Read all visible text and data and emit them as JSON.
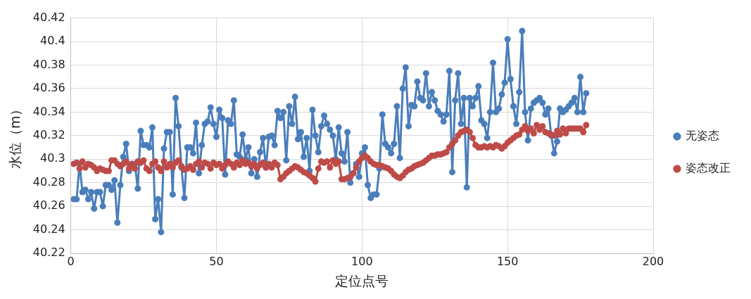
{
  "chart_data": {
    "type": "line",
    "xlabel": "定位点号",
    "ylabel": "水位（m）",
    "xlim": [
      0,
      200
    ],
    "xticks": [
      0,
      50,
      100,
      150,
      200
    ],
    "ylim": [
      40.22,
      40.42
    ],
    "yticks": [
      40.22,
      40.24,
      40.26,
      40.28,
      40.3,
      40.32,
      40.34,
      40.36,
      40.38,
      40.4,
      40.42
    ],
    "grid": true,
    "legend": "right",
    "marker": "circle",
    "line_style": "solid",
    "x": [
      1,
      2,
      3,
      4,
      5,
      6,
      7,
      8,
      9,
      10,
      11,
      12,
      13,
      14,
      15,
      16,
      17,
      18,
      19,
      20,
      21,
      22,
      23,
      24,
      25,
      26,
      27,
      28,
      29,
      30,
      31,
      32,
      33,
      34,
      35,
      36,
      37,
      38,
      39,
      40,
      41,
      42,
      43,
      44,
      45,
      46,
      47,
      48,
      49,
      50,
      51,
      52,
      53,
      54,
      55,
      56,
      57,
      58,
      59,
      60,
      61,
      62,
      63,
      64,
      65,
      66,
      67,
      68,
      69,
      70,
      71,
      72,
      73,
      74,
      75,
      76,
      77,
      78,
      79,
      80,
      81,
      82,
      83,
      84,
      85,
      86,
      87,
      88,
      89,
      90,
      91,
      92,
      93,
      94,
      95,
      96,
      97,
      98,
      99,
      100,
      101,
      102,
      103,
      104,
      105,
      106,
      107,
      108,
      109,
      110,
      111,
      112,
      113,
      114,
      115,
      116,
      117,
      118,
      119,
      120,
      121,
      122,
      123,
      124,
      125,
      126,
      127,
      128,
      129,
      130,
      131,
      132,
      133,
      134,
      135,
      136,
      137,
      138,
      139,
      140,
      141,
      142,
      143,
      144,
      145,
      146,
      147,
      148,
      149,
      150,
      151,
      152,
      153,
      154,
      155,
      156,
      157,
      158,
      159,
      160,
      161,
      162,
      163,
      164,
      165,
      166,
      167,
      168,
      169,
      170,
      171,
      172,
      173,
      174,
      175,
      176,
      177
    ],
    "series": [
      {
        "name": "无姿态",
        "color": "#4a7ebb",
        "values": [
          40.266,
          40.266,
          40.296,
          40.272,
          40.274,
          40.266,
          40.272,
          40.258,
          40.272,
          40.272,
          40.26,
          40.278,
          40.278,
          40.274,
          40.282,
          40.246,
          40.278,
          40.302,
          40.313,
          40.29,
          40.296,
          40.296,
          40.275,
          40.324,
          40.312,
          40.312,
          40.31,
          40.327,
          40.249,
          40.266,
          40.238,
          40.309,
          40.323,
          40.323,
          40.27,
          40.352,
          40.328,
          40.293,
          40.267,
          40.31,
          40.31,
          40.305,
          40.331,
          40.288,
          40.312,
          40.33,
          40.332,
          40.344,
          40.33,
          40.319,
          40.342,
          40.335,
          40.287,
          40.333,
          40.33,
          40.35,
          40.304,
          40.302,
          40.321,
          40.3,
          40.31,
          40.288,
          40.3,
          40.285,
          40.306,
          40.318,
          40.293,
          40.319,
          40.32,
          40.312,
          40.341,
          40.335,
          40.34,
          40.299,
          40.345,
          40.33,
          40.353,
          40.317,
          40.323,
          40.302,
          40.318,
          40.29,
          40.342,
          40.32,
          40.306,
          40.328,
          40.337,
          40.33,
          40.325,
          40.32,
          40.3,
          40.327,
          40.305,
          40.298,
          40.323,
          40.28,
          40.288,
          40.296,
          40.285,
          40.305,
          40.31,
          40.278,
          40.267,
          40.27,
          40.27,
          40.292,
          40.338,
          40.313,
          40.31,
          40.305,
          40.313,
          40.345,
          40.301,
          40.36,
          40.378,
          40.328,
          40.346,
          40.345,
          40.366,
          40.352,
          40.35,
          40.373,
          40.345,
          40.357,
          40.35,
          40.341,
          40.338,
          40.332,
          40.338,
          40.375,
          40.289,
          40.35,
          40.373,
          40.33,
          40.352,
          40.276,
          40.352,
          40.345,
          40.352,
          40.362,
          40.333,
          40.33,
          40.318,
          40.34,
          40.382,
          40.34,
          40.343,
          40.355,
          40.365,
          40.402,
          40.368,
          40.345,
          40.33,
          40.357,
          40.409,
          40.34,
          40.316,
          40.343,
          40.348,
          40.35,
          40.352,
          40.348,
          40.338,
          40.343,
          40.32,
          40.305,
          40.315,
          40.343,
          40.34,
          40.342,
          40.345,
          40.348,
          40.352,
          40.34,
          40.37,
          40.34,
          40.356
        ]
      },
      {
        "name": "姿态改正",
        "color": "#be4b48",
        "values": [
          40.296,
          40.297,
          40.292,
          40.298,
          40.293,
          40.296,
          40.295,
          40.293,
          40.29,
          40.292,
          40.291,
          40.29,
          40.29,
          40.299,
          40.299,
          40.296,
          40.294,
          40.296,
          40.298,
          40.292,
          40.296,
          40.292,
          40.298,
          40.297,
          40.299,
          40.292,
          40.29,
          40.296,
          40.298,
          40.293,
          40.29,
          40.298,
          40.293,
          40.296,
          40.293,
          40.297,
          40.299,
          40.294,
          40.291,
          40.292,
          40.294,
          40.291,
          40.296,
          40.298,
          40.293,
          40.297,
          40.296,
          40.292,
          40.297,
          40.295,
          40.296,
          40.292,
          40.295,
          40.298,
          40.296,
          40.293,
          40.297,
          40.295,
          40.299,
          40.296,
          40.297,
          40.294,
          40.296,
          40.292,
          40.295,
          40.297,
          40.293,
          40.296,
          40.293,
          40.297,
          40.295,
          40.283,
          40.285,
          40.288,
          40.29,
          40.292,
          40.294,
          40.293,
          40.291,
          40.289,
          40.288,
          40.286,
          40.284,
          40.281,
          40.292,
          40.298,
          40.297,
          40.298,
          40.293,
          40.299,
          40.296,
          40.298,
          40.283,
          40.283,
          40.284,
          40.285,
          40.288,
          40.293,
          40.298,
          40.301,
          40.303,
          40.301,
          40.298,
          40.296,
          40.295,
          40.295,
          40.294,
          40.293,
          40.292,
          40.29,
          40.287,
          40.285,
          40.284,
          40.286,
          40.289,
          40.291,
          40.292,
          40.294,
          40.295,
          40.296,
          40.297,
          40.299,
          40.301,
          40.303,
          40.303,
          40.304,
          40.304,
          40.305,
          40.306,
          40.31,
          40.313,
          40.316,
          40.32,
          40.323,
          40.324,
          40.325,
          40.323,
          40.318,
          40.312,
          40.31,
          40.31,
          40.311,
          40.31,
          40.311,
          40.31,
          40.312,
          40.311,
          40.309,
          40.311,
          40.314,
          40.316,
          40.318,
          40.32,
          40.321,
          40.325,
          40.328,
          40.324,
          40.326,
          40.322,
          40.329,
          40.325,
          40.328,
          40.323,
          40.322,
          40.321,
          40.32,
          40.324,
          40.321,
          40.326,
          40.322,
          40.326,
          40.326,
          40.326,
          40.326,
          40.326,
          40.323,
          40.329
        ]
      }
    ]
  }
}
